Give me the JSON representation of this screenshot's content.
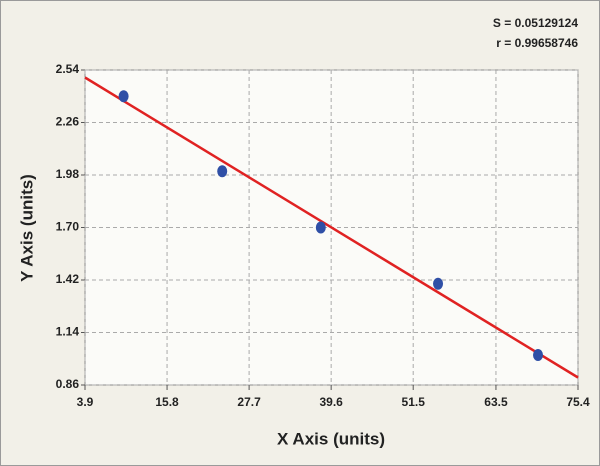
{
  "chart_data": {
    "type": "scatter",
    "x_label": "X Axis (units)",
    "y_label": "Y Axis (units)",
    "annotations": [
      "S = 0.05129124",
      "r = 0.99658746"
    ],
    "x": [
      9.5,
      23.8,
      38.1,
      55.1,
      69.6
    ],
    "values": [
      2.4,
      2.0,
      1.7,
      1.4,
      1.02
    ],
    "color": "#2f4fa6",
    "fit": {
      "x": [
        3.9,
        75.4
      ],
      "values": [
        2.5,
        0.9
      ],
      "color": "#e02222"
    },
    "xlim": [
      3.9,
      75.4
    ],
    "xticks": [
      3.9,
      15.8,
      27.7,
      39.6,
      51.5,
      63.5,
      75.4
    ],
    "ylim": [
      0.86,
      2.54
    ],
    "yticks": [
      0.86,
      1.14,
      1.42,
      {
        "value": 1.7,
        "label": "1.70"
      },
      1.98,
      2.26,
      2.54
    ],
    "grid": true
  }
}
